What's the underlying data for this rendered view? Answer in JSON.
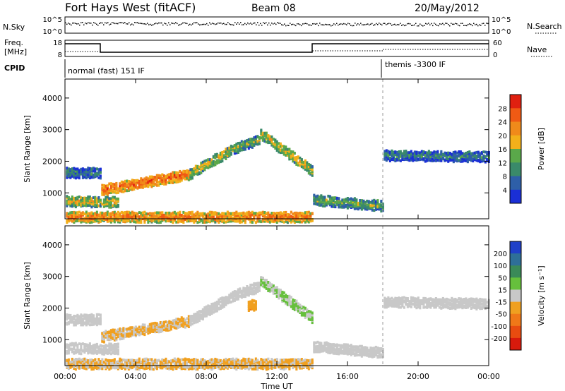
{
  "header": {
    "station": "Fort Hays West (fitACF)",
    "beam": "Beam 08",
    "date": "20/May/2012"
  },
  "top_panel": {
    "left_label": "N.Sky",
    "left_ticks": [
      "10^5",
      "10^0"
    ],
    "right_label": "N.Search",
    "right_ticks": [
      "10^5",
      "10^0"
    ]
  },
  "freq_panel": {
    "left_label_1": "Freq.",
    "left_label_2": "[MHz]",
    "left_ticks": [
      "18",
      "8"
    ],
    "right_label": "Nave",
    "right_ticks": [
      "60",
      "0"
    ]
  },
  "cpid_panel": {
    "label": "CPID",
    "modes": [
      "normal (fast) 151 IF",
      "themis -3300 IF"
    ]
  },
  "colors": {
    "power_scale": [
      "#1a2fd6",
      "#2e5fa8",
      "#3a8a6a",
      "#5aa84a",
      "#f2b01a",
      "#f08a1a",
      "#f05a14",
      "#e02010"
    ],
    "velocity_scale": [
      "#2040c8",
      "#2e6f98",
      "#3a8a58",
      "#66c03c",
      "#c8c8c8",
      "#f0a020",
      "#f07818",
      "#e84c10",
      "#d81a0c"
    ]
  },
  "chart_data": [
    {
      "type": "heatmap",
      "title": "",
      "quantity": "Power",
      "xlabel": "",
      "ylabel": "Slant Range [km]",
      "x_ticks": [
        "00:00",
        "04:00",
        "08:00",
        "12:00",
        "16:00",
        "20:00",
        "00:00"
      ],
      "y_ticks": [
        "1000",
        "2000",
        "3000",
        "4000"
      ],
      "xlim_hours": [
        0,
        24
      ],
      "ylim_km": [
        180,
        4600
      ],
      "colorbar": {
        "label": "Power [dB]",
        "ticks": [
          "4",
          "8",
          "12",
          "16",
          "20",
          "24",
          "28"
        ],
        "range": [
          0,
          32
        ]
      },
      "echo_bands": [
        {
          "x_start": 0.0,
          "x_end": 2.0,
          "range_start": 1650,
          "range_end": 1650,
          "value": 10
        },
        {
          "x_start": 0.0,
          "x_end": 3.0,
          "range_start": 750,
          "range_end": 720,
          "value": 18
        },
        {
          "x_start": 2.0,
          "x_end": 7.0,
          "range_start": 1100,
          "range_end": 1600,
          "value": 26
        },
        {
          "x_start": 7.0,
          "x_end": 9.5,
          "range_start": 1600,
          "range_end": 2400,
          "value": 18
        },
        {
          "x_start": 9.5,
          "x_end": 11.0,
          "range_start": 2400,
          "range_end": 2700,
          "value": 14
        },
        {
          "x_start": 11.0,
          "x_end": 14.0,
          "range_start": 2900,
          "range_end": 1700,
          "value": 18
        },
        {
          "x_start": 14.0,
          "x_end": 18.0,
          "range_start": 800,
          "range_end": 600,
          "value": 14
        },
        {
          "x_start": 18.0,
          "x_end": 24.0,
          "range_start": 2200,
          "range_end": 2150,
          "value": 10
        },
        {
          "x_start": 0.0,
          "x_end": 14.0,
          "range_start": 250,
          "range_end": 250,
          "value": 24
        }
      ]
    },
    {
      "type": "heatmap",
      "title": "",
      "quantity": "Velocity",
      "xlabel": "Time UT",
      "ylabel": "Slant Range [km]",
      "x_ticks": [
        "00:00",
        "04:00",
        "08:00",
        "12:00",
        "16:00",
        "20:00",
        "00:00"
      ],
      "y_ticks": [
        "1000",
        "2000",
        "3000",
        "4000"
      ],
      "xlim_hours": [
        0,
        24
      ],
      "ylim_km": [
        180,
        4600
      ],
      "colorbar": {
        "label": "Velocity [m s⁻¹]",
        "ticks": [
          "200",
          "100",
          "50",
          "15",
          "-15",
          "-50",
          "-100",
          "-200"
        ],
        "range": [
          -250,
          250
        ]
      },
      "echo_bands": [
        {
          "x_start": 0.0,
          "x_end": 2.0,
          "range_start": 1650,
          "range_end": 1650,
          "value": 0
        },
        {
          "x_start": 0.0,
          "x_end": 3.0,
          "range_start": 750,
          "range_end": 720,
          "value": 0
        },
        {
          "x_start": 2.0,
          "x_end": 7.0,
          "range_start": 1100,
          "range_end": 1600,
          "value": -30
        },
        {
          "x_start": 7.0,
          "x_end": 9.5,
          "range_start": 1600,
          "range_end": 2400,
          "value": 0
        },
        {
          "x_start": 9.5,
          "x_end": 11.0,
          "range_start": 2400,
          "range_end": 2700,
          "value": 0
        },
        {
          "x_start": 10.3,
          "x_end": 10.8,
          "range_start": 2100,
          "range_end": 2100,
          "value": -70
        },
        {
          "x_start": 11.0,
          "x_end": 14.0,
          "range_start": 2900,
          "range_end": 1700,
          "value": 30
        },
        {
          "x_start": 14.0,
          "x_end": 18.0,
          "range_start": 800,
          "range_end": 600,
          "value": 0
        },
        {
          "x_start": 18.0,
          "x_end": 24.0,
          "range_start": 2200,
          "range_end": 2150,
          "value": 0
        },
        {
          "x_start": 0.0,
          "x_end": 14.0,
          "range_start": 250,
          "range_end": 250,
          "value": -30
        }
      ]
    }
  ]
}
